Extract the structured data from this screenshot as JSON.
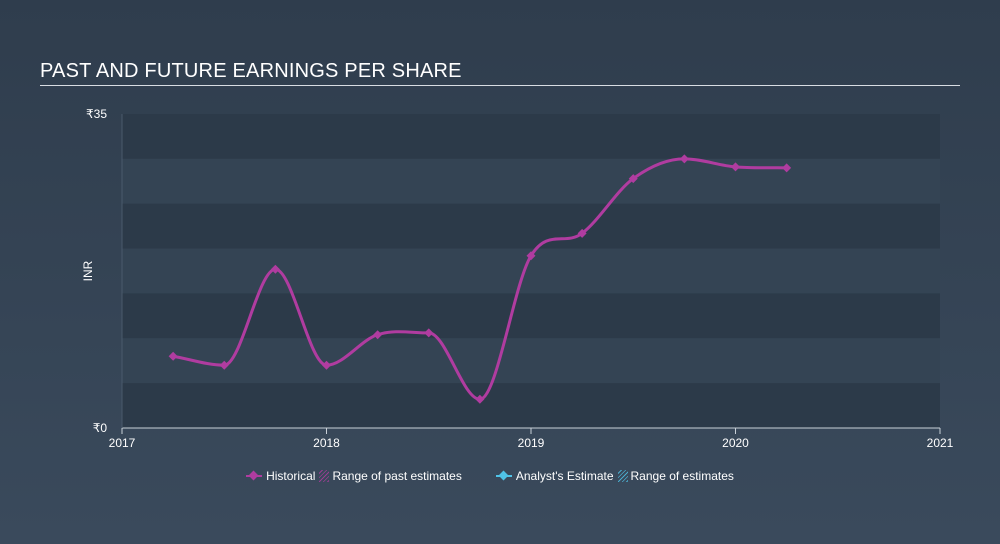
{
  "chart_data": {
    "type": "line",
    "title": "PAST AND FUTURE EARNINGS PER SHARE",
    "ylabel": "INR",
    "ylim": [
      0,
      35
    ],
    "y_ticks": [
      {
        "value": 35,
        "label": "₹35"
      },
      {
        "value": 0,
        "label": "₹0"
      }
    ],
    "xlim": [
      2017.0,
      2021.0
    ],
    "x_ticks": [
      {
        "value": 2017,
        "label": "2017"
      },
      {
        "value": 2018,
        "label": "2018"
      },
      {
        "value": 2019,
        "label": "2019"
      },
      {
        "value": 2020,
        "label": "2020"
      },
      {
        "value": 2021,
        "label": "2021"
      }
    ],
    "grid": "alternating horizontal bands",
    "legend_position": "bottom-center",
    "series": [
      {
        "name": "Historical",
        "color": "#b03ca0",
        "points": [
          {
            "x": 2017.25,
            "y": 8.0
          },
          {
            "x": 2017.5,
            "y": 7.0
          },
          {
            "x": 2017.75,
            "y": 17.7
          },
          {
            "x": 2018.0,
            "y": 7.0
          },
          {
            "x": 2018.25,
            "y": 10.4
          },
          {
            "x": 2018.5,
            "y": 10.6
          },
          {
            "x": 2018.75,
            "y": 3.2
          },
          {
            "x": 2019.0,
            "y": 19.2
          },
          {
            "x": 2019.25,
            "y": 21.7
          },
          {
            "x": 2019.5,
            "y": 27.8
          },
          {
            "x": 2019.75,
            "y": 30.0
          },
          {
            "x": 2020.0,
            "y": 29.1
          },
          {
            "x": 2020.25,
            "y": 29.0
          }
        ]
      }
    ],
    "legend": [
      {
        "label": "Historical",
        "kind": "line",
        "color": "#b03ca0"
      },
      {
        "label": "Range of past estimates",
        "kind": "hatch",
        "color": "#b03ca0"
      },
      {
        "label": "Analyst's Estimate",
        "kind": "line",
        "color": "#4fc3e8"
      },
      {
        "label": "Range of estimates",
        "kind": "hatch",
        "color": "#4fc3e8"
      }
    ]
  }
}
